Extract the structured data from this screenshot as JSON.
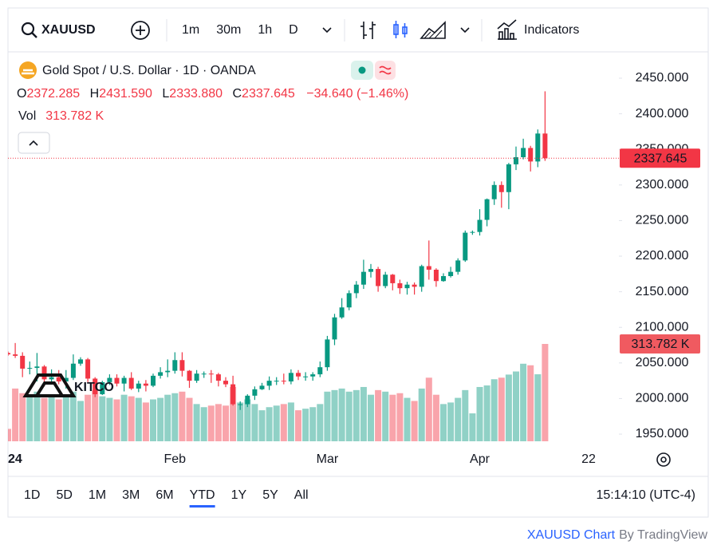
{
  "toolbar": {
    "symbol": "XAUUSD",
    "intervals": [
      "1m",
      "30m",
      "1h",
      "D"
    ],
    "active_interval": 3,
    "indicators": "Indicators"
  },
  "chart_data": {
    "type": "candlestick",
    "title": "Gold Spot / U.S. Dollar · 1D · OANDA",
    "legend": {
      "open_key": "O",
      "open": "2372.285",
      "high_key": "H",
      "high": "2431.590",
      "low_key": "L",
      "low": "2333.880",
      "close_key": "C",
      "close": "2337.645",
      "change": "−34.640 (−1.46%)",
      "vol_key": "Vol",
      "vol": "313.782 K"
    },
    "categories": [
      "2024",
      null,
      null,
      null,
      null,
      null,
      null,
      null,
      null,
      null,
      null,
      null,
      null,
      null,
      null,
      null,
      null,
      null,
      null,
      null,
      null,
      null,
      null,
      "Feb",
      null,
      null,
      null,
      null,
      null,
      null,
      null,
      null,
      null,
      null,
      null,
      null,
      null,
      null,
      null,
      null,
      null,
      null,
      null,
      null,
      "Mar",
      null,
      null,
      null,
      null,
      null,
      null,
      null,
      null,
      null,
      null,
      null,
      null,
      null,
      null,
      null,
      null,
      null,
      null,
      null,
      null,
      "Apr",
      null,
      null,
      null,
      null,
      null,
      null,
      null,
      null,
      null,
      null,
      null,
      null,
      null,
      null,
      "22"
    ],
    "open": [
      2064,
      2062,
      2060,
      2042,
      2043,
      2045,
      2027,
      2030,
      2024,
      2029,
      2049,
      2055,
      2028,
      2006,
      2023,
      2029,
      2021,
      2029,
      2014,
      2021,
      2018,
      2032,
      2037,
      2039,
      2054,
      2039,
      2025,
      2035,
      2035,
      2034,
      2025,
      2020,
      1992,
      1992,
      2004,
      2013,
      2018,
      2025,
      2025,
      2024,
      2036,
      2031,
      2031,
      2034,
      2044,
      2083,
      2114,
      2128,
      2148,
      2160,
      2178,
      2182,
      2158,
      2174,
      2162,
      2155,
      2160,
      2157,
      2186,
      2181,
      2165,
      2172,
      2178,
      2194,
      2233,
      2234,
      2251,
      2280,
      2300,
      2290,
      2329,
      2339,
      2352,
      2333,
      2372.285,
      null,
      null,
      null,
      null,
      null,
      null
    ],
    "high": [
      2066,
      2078,
      2065,
      2052,
      2064,
      2047,
      2041,
      2040,
      2040,
      2062,
      2058,
      2057,
      2030,
      2025,
      2034,
      2034,
      2032,
      2037,
      2025,
      2026,
      2035,
      2044,
      2055,
      2065,
      2065,
      2040,
      2040,
      2038,
      2040,
      2036,
      2030,
      2032,
      1996,
      2006,
      2017,
      2022,
      2031,
      2030,
      2035,
      2041,
      2040,
      2037,
      2037,
      2052,
      2088,
      2119,
      2141,
      2152,
      2165,
      2195,
      2189,
      2185,
      2178,
      2175,
      2167,
      2164,
      2163,
      2188,
      2222,
      2183,
      2176,
      2185,
      2197,
      2236,
      2236,
      2266,
      2281,
      2305,
      2305,
      2331,
      2354,
      2365,
      2355,
      2378,
      2431.59,
      null,
      null,
      null,
      null,
      null,
      null
    ],
    "low": [
      2060,
      2057,
      2030,
      2034,
      2024,
      2017,
      2021,
      2020,
      2014,
      2026,
      2046,
      2023,
      2002,
      2005,
      2019,
      2017,
      2010,
      2012,
      2009,
      2010,
      2016,
      2028,
      2030,
      2035,
      2031,
      2015,
      2022,
      2029,
      2022,
      2017,
      2016,
      1990,
      1984,
      1988,
      1998,
      2012,
      2012,
      2019,
      2020,
      2020,
      2026,
      2025,
      2025,
      2030,
      2039,
      2075,
      2112,
      2124,
      2141,
      2154,
      2170,
      2150,
      2155,
      2152,
      2147,
      2146,
      2146,
      2150,
      2167,
      2157,
      2164,
      2170,
      2174,
      2192,
      2230,
      2229,
      2242,
      2272,
      2268,
      2266,
      2321,
      2336,
      2319,
      2325,
      2333.88,
      null,
      null,
      null,
      null,
      null,
      null
    ],
    "close": [
      2062,
      2060,
      2042,
      2043,
      2045,
      2027,
      2030,
      2024,
      2029,
      2049,
      2055,
      2028,
      2006,
      2023,
      2029,
      2021,
      2029,
      2014,
      2021,
      2018,
      2032,
      2037,
      2039,
      2054,
      2039,
      2025,
      2035,
      2035,
      2034,
      2025,
      2020,
      1992,
      1992,
      2004,
      2013,
      2018,
      2025,
      2025,
      2024,
      2036,
      2031,
      2031,
      2034,
      2044,
      2083,
      2114,
      2128,
      2148,
      2160,
      2178,
      2182,
      2158,
      2174,
      2162,
      2155,
      2160,
      2157,
      2186,
      2181,
      2165,
      2172,
      2178,
      2194,
      2233,
      2234,
      2251,
      2280,
      2300,
      2290,
      2329,
      2339,
      2352,
      2333,
      2372.285,
      2337.645,
      null,
      null,
      null,
      null,
      null,
      null
    ],
    "volume": [
      40,
      170,
      155,
      150,
      160,
      140,
      150,
      135,
      150,
      160,
      130,
      150,
      165,
      145,
      140,
      135,
      150,
      145,
      140,
      125,
      135,
      140,
      150,
      155,
      160,
      140,
      120,
      110,
      115,
      120,
      115,
      175,
      125,
      135,
      120,
      100,
      110,
      115,
      120,
      125,
      100,
      105,
      110,
      120,
      160,
      165,
      170,
      160,
      165,
      175,
      150,
      165,
      160,
      150,
      155,
      140,
      130,
      170,
      205,
      150,
      120,
      125,
      140,
      165,
      90,
      175,
      180,
      200,
      205,
      215,
      225,
      250,
      245,
      216,
      313.782,
      null,
      null,
      null,
      null,
      null,
      null
    ],
    "last_volume_label": "313.782 K",
    "up_color": "#089981",
    "down_color": "#f23645",
    "ylim": [
      1937.7,
      2487
    ],
    "yticks": [
      {
        "value": 1950,
        "label": "1950.000"
      },
      {
        "value": 2000,
        "label": "2000.000"
      },
      {
        "value": 2050,
        "label": "2050.000"
      },
      {
        "value": 2100,
        "label": "2100.000"
      },
      {
        "value": 2150,
        "label": "2150.000"
      },
      {
        "value": 2200,
        "label": "2200.000"
      },
      {
        "value": 2250,
        "label": "2250.000"
      },
      {
        "value": 2300,
        "label": "2300.000"
      },
      {
        "value": 2350,
        "label": "2350.000"
      },
      {
        "value": 2400,
        "label": "2400.000"
      },
      {
        "value": 2450,
        "label": "2450.000"
      }
    ],
    "watermark": "KITCO"
  },
  "ranges": [
    "1D",
    "5D",
    "1M",
    "3M",
    "6M",
    "YTD",
    "1Y",
    "5Y",
    "All"
  ],
  "active_range": 5,
  "time": "15:14:10 (UTC-4)",
  "footer": {
    "chart": "XAUUSD Chart",
    "by": "By TradingView"
  }
}
